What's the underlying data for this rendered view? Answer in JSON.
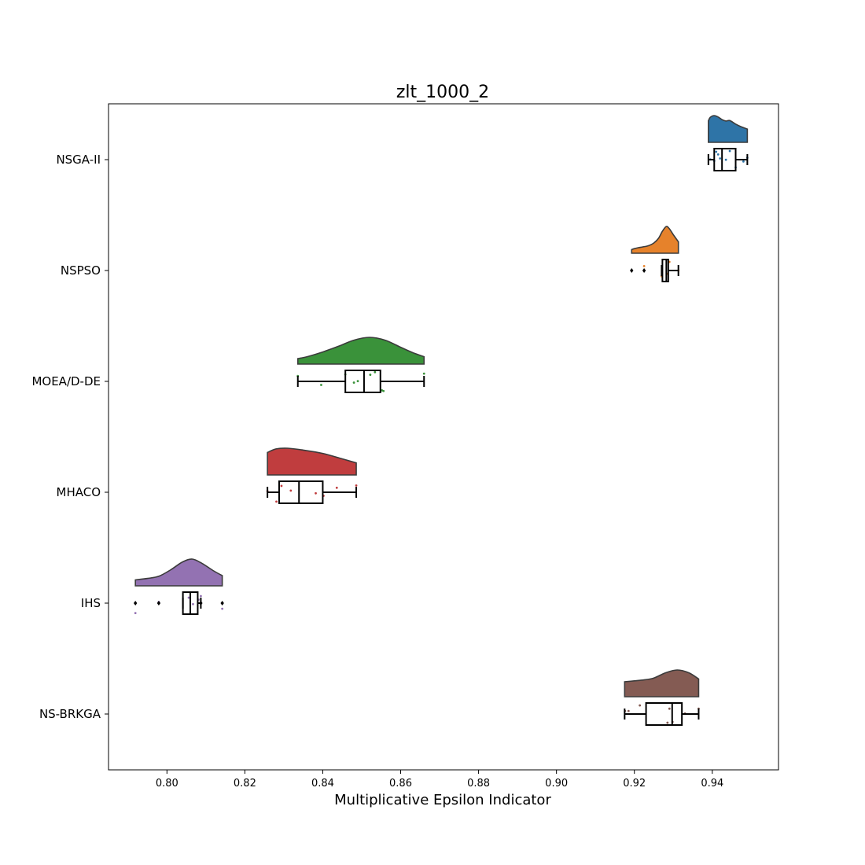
{
  "chart_data": {
    "type": "raincloud",
    "title": "zlt_1000_2",
    "xlabel": "Multiplicative Epsilon Indicator",
    "ylabel": "",
    "orientation": "horizontal",
    "xlim": [
      0.785,
      0.957
    ],
    "xticks": [
      0.8,
      0.82,
      0.84,
      0.86,
      0.88,
      0.9,
      0.92,
      0.94
    ],
    "xtick_labels": [
      "0.80",
      "0.82",
      "0.84",
      "0.86",
      "0.88",
      "0.90",
      "0.92",
      "0.94"
    ],
    "grid": false,
    "categories": [
      "NSGA-II",
      "NSPSO",
      "MOEA/D-DE",
      "MHACO",
      "IHS",
      "NS-BRKGA"
    ],
    "series": [
      {
        "category": "NSGA-II",
        "color": "#2e74a7",
        "box": {
          "whisker_low": 0.939,
          "q1": 0.9405,
          "median": 0.9425,
          "q3": 0.946,
          "whisker_high": 0.949
        },
        "outliers": [],
        "points": [
          0.9395,
          0.9405,
          0.941,
          0.9415,
          0.942,
          0.9435,
          0.9445,
          0.946,
          0.948,
          0.949
        ],
        "density": [
          [
            0.939,
            0.78
          ],
          [
            0.9395,
            0.93
          ],
          [
            0.9405,
            1.0
          ],
          [
            0.9415,
            0.94
          ],
          [
            0.9425,
            0.83
          ],
          [
            0.9435,
            0.77
          ],
          [
            0.9445,
            0.79
          ],
          [
            0.946,
            0.64
          ],
          [
            0.9475,
            0.52
          ],
          [
            0.949,
            0.43
          ]
        ]
      },
      {
        "category": "NSPSO",
        "color": "#e6822b",
        "box": {
          "whisker_low": 0.927,
          "q1": 0.9272,
          "median": 0.9282,
          "q3": 0.9287,
          "whisker_high": 0.9313
        },
        "outliers": [
          0.9193,
          0.9225
        ],
        "points": [
          0.9225,
          0.927,
          0.9285,
          0.929,
          0.9313
        ],
        "density": [
          [
            0.9193,
            0.02
          ],
          [
            0.92,
            0.06
          ],
          [
            0.921,
            0.1
          ],
          [
            0.922,
            0.13
          ],
          [
            0.9235,
            0.18
          ],
          [
            0.925,
            0.3
          ],
          [
            0.9262,
            0.5
          ],
          [
            0.9272,
            0.8
          ],
          [
            0.9282,
            1.0
          ],
          [
            0.929,
            0.9
          ],
          [
            0.93,
            0.65
          ],
          [
            0.9313,
            0.35
          ]
        ]
      },
      {
        "category": "MOEA/D-DE",
        "color": "#3a923a",
        "box": {
          "whisker_low": 0.8336,
          "q1": 0.8458,
          "median": 0.8506,
          "q3": 0.8548,
          "whisker_high": 0.866
        },
        "outliers": [],
        "points": [
          0.8336,
          0.8396,
          0.8458,
          0.848,
          0.849,
          0.8522,
          0.8534,
          0.8552,
          0.8556,
          0.866
        ],
        "density": [
          [
            0.8336,
            0.1
          ],
          [
            0.836,
            0.18
          ],
          [
            0.84,
            0.38
          ],
          [
            0.844,
            0.62
          ],
          [
            0.848,
            0.88
          ],
          [
            0.852,
            1.0
          ],
          [
            0.856,
            0.88
          ],
          [
            0.86,
            0.58
          ],
          [
            0.863,
            0.36
          ],
          [
            0.866,
            0.18
          ]
        ]
      },
      {
        "category": "MHACO",
        "color": "#c03d3e",
        "box": {
          "whisker_low": 0.8258,
          "q1": 0.8288,
          "median": 0.8339,
          "q3": 0.84,
          "whisker_high": 0.8486
        },
        "outliers": [],
        "points": [
          0.8258,
          0.8281,
          0.8294,
          0.8318,
          0.8382,
          0.8402,
          0.8436,
          0.8486
        ],
        "density": [
          [
            0.8258,
            0.82
          ],
          [
            0.828,
            0.97
          ],
          [
            0.831,
            1.0
          ],
          [
            0.835,
            0.92
          ],
          [
            0.84,
            0.78
          ],
          [
            0.845,
            0.55
          ],
          [
            0.8486,
            0.38
          ]
        ]
      },
      {
        "category": "IHS",
        "color": "#9372b2",
        "box": {
          "whisker_low": 0.8041,
          "q1": 0.8041,
          "median": 0.806,
          "q3": 0.8079,
          "whisker_high": 0.8087
        },
        "outliers": [
          0.7919,
          0.7979,
          0.8087,
          0.8142
        ],
        "points": [
          0.7919,
          0.7979,
          0.8056,
          0.8067,
          0.8081,
          0.8087,
          0.8142
        ],
        "density": [
          [
            0.7919,
            0.12
          ],
          [
            0.795,
            0.18
          ],
          [
            0.798,
            0.28
          ],
          [
            0.801,
            0.55
          ],
          [
            0.804,
            0.88
          ],
          [
            0.8065,
            1.0
          ],
          [
            0.809,
            0.82
          ],
          [
            0.812,
            0.5
          ],
          [
            0.8142,
            0.3
          ]
        ]
      },
      {
        "category": "NS-BRKGA",
        "color": "#845b53",
        "box": {
          "whisker_low": 0.9175,
          "q1": 0.923,
          "median": 0.9297,
          "q3": 0.9322,
          "whisker_high": 0.9365
        },
        "outliers": [],
        "points": [
          0.9176,
          0.9185,
          0.9214,
          0.9285,
          0.929,
          0.9298,
          0.933,
          0.9365
        ],
        "density": [
          [
            0.9175,
            0.5
          ],
          [
            0.92,
            0.54
          ],
          [
            0.9225,
            0.58
          ],
          [
            0.925,
            0.66
          ],
          [
            0.928,
            0.88
          ],
          [
            0.931,
            1.0
          ],
          [
            0.934,
            0.88
          ],
          [
            0.9365,
            0.62
          ]
        ]
      }
    ]
  }
}
